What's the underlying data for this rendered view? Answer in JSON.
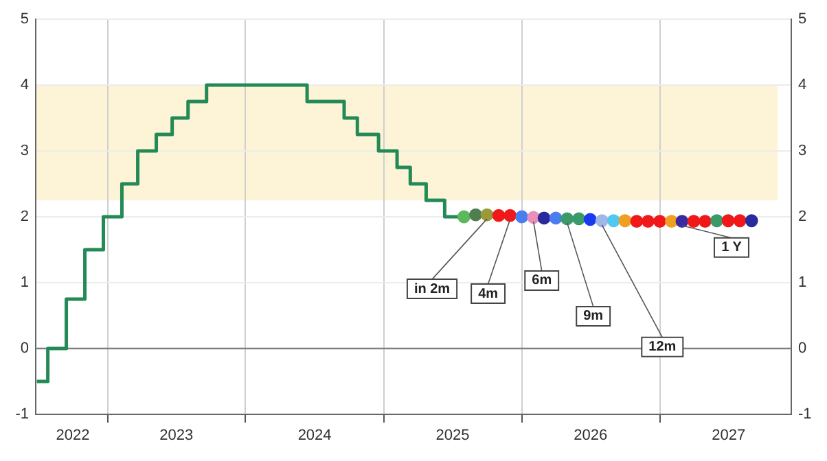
{
  "chart_data": {
    "type": "step",
    "series": [
      {
        "color": "#238a57",
        "x": [
          "2022-06-28",
          "2022-07-27",
          "2022-09-14",
          "2022-11-02",
          "2022-12-21",
          "2023-02-08",
          "2023-03-22",
          "2023-05-10",
          "2023-06-21",
          "2023-08-02",
          "2023-09-20",
          "2024-06-12",
          "2024-09-18",
          "2024-10-23",
          "2024-12-18",
          "2025-02-05",
          "2025-03-12",
          "2025-04-23",
          "2025-06-11",
          "2025-08-01"
        ],
        "values": [
          -0.5,
          -0.5,
          0,
          0.75,
          1.5,
          2,
          2.5,
          3,
          3.25,
          3.5,
          3.75,
          4,
          3.75,
          3.5,
          3.25,
          3,
          2.75,
          2.5,
          2.25,
          2
        ]
      },
      {
        "type": "scatter",
        "marker": "circle",
        "x": [
          "2025-08",
          "2025-09",
          "2025-10",
          "2025-11",
          "2025-12",
          "2026-01",
          "2026-02",
          "2026-03",
          "2026-04",
          "2026-05",
          "2026-06",
          "2026-07",
          "2026-08",
          "2026-09",
          "2026-10",
          "2026-11",
          "2026-12",
          "2027-01",
          "2027-02",
          "2027-03",
          "2027-04",
          "2027-05",
          "2027-06",
          "2027-07",
          "2027-08",
          "2027-09"
        ],
        "values": [
          2.0,
          2.03,
          2.03,
          2.02,
          2.02,
          2.0,
          1.99,
          1.98,
          1.98,
          1.97,
          1.97,
          1.96,
          1.94,
          1.94,
          1.94,
          1.93,
          1.93,
          1.93,
          1.93,
          1.93,
          1.93,
          1.93,
          1.94,
          1.94,
          1.94,
          1.94
        ],
        "colors": [
          "#5cb85c",
          "#4f7f4f",
          "#9a9a3a",
          "#f01818",
          "#f01818",
          "#4a7ef0",
          "#e890b8",
          "#2a2a9a",
          "#4a7ef0",
          "#3a9a6a",
          "#3a9a6a",
          "#1a3af0",
          "#a0b8e8",
          "#50c8f0",
          "#f0a020",
          "#f01818",
          "#f01818",
          "#f01818",
          "#f0a020",
          "#3a2aa0",
          "#f01818",
          "#f01818",
          "#3a9a6a",
          "#f01818",
          "#f01818",
          "#2a2aa0"
        ]
      }
    ],
    "xlim": [
      "2022-06-25",
      "2027-12-15"
    ],
    "xticks": [
      {
        "value": "2022-10-01",
        "label": "2022"
      },
      {
        "value": "2023-01-01",
        "label": null
      },
      {
        "value": "2023-07-02",
        "label": "2023"
      },
      {
        "value": "2024-01-01",
        "label": null
      },
      {
        "value": "2024-07-02",
        "label": "2024"
      },
      {
        "value": "2025-01-01",
        "label": null
      },
      {
        "value": "2025-07-02",
        "label": "2025"
      },
      {
        "value": "2026-01-01",
        "label": null
      },
      {
        "value": "2026-07-02",
        "label": "2026"
      },
      {
        "value": "2027-01-01",
        "label": null
      },
      {
        "value": "2027-07-02",
        "label": "2027"
      }
    ],
    "ylim": [
      -1,
      5
    ],
    "yticks": [
      -1,
      0,
      1,
      2,
      3,
      4,
      5
    ],
    "y2lim": [
      -1,
      5
    ],
    "y2ticks": [
      -1,
      0,
      1,
      2,
      3,
      4,
      5
    ],
    "grid": true,
    "bands": [
      {
        "axis": "y",
        "from": 2.25,
        "to": 4,
        "color": "#fdf3d6"
      }
    ],
    "ref_lines": [
      {
        "axis": "y",
        "value": 0,
        "color": "#808080"
      }
    ],
    "annotations": [
      {
        "text": "in 2m",
        "x": "2025-10",
        "y": 2.03
      },
      {
        "text": "4m",
        "x": "2025-12",
        "y": 2.02
      },
      {
        "text": "6m",
        "x": "2026-02",
        "y": 1.99
      },
      {
        "text": "9m",
        "x": "2026-05",
        "y": 1.97
      },
      {
        "text": "12m",
        "x": "2026-08",
        "y": 1.94
      },
      {
        "text": "1 Y",
        "x": "2027-03",
        "y": 1.93
      }
    ]
  }
}
